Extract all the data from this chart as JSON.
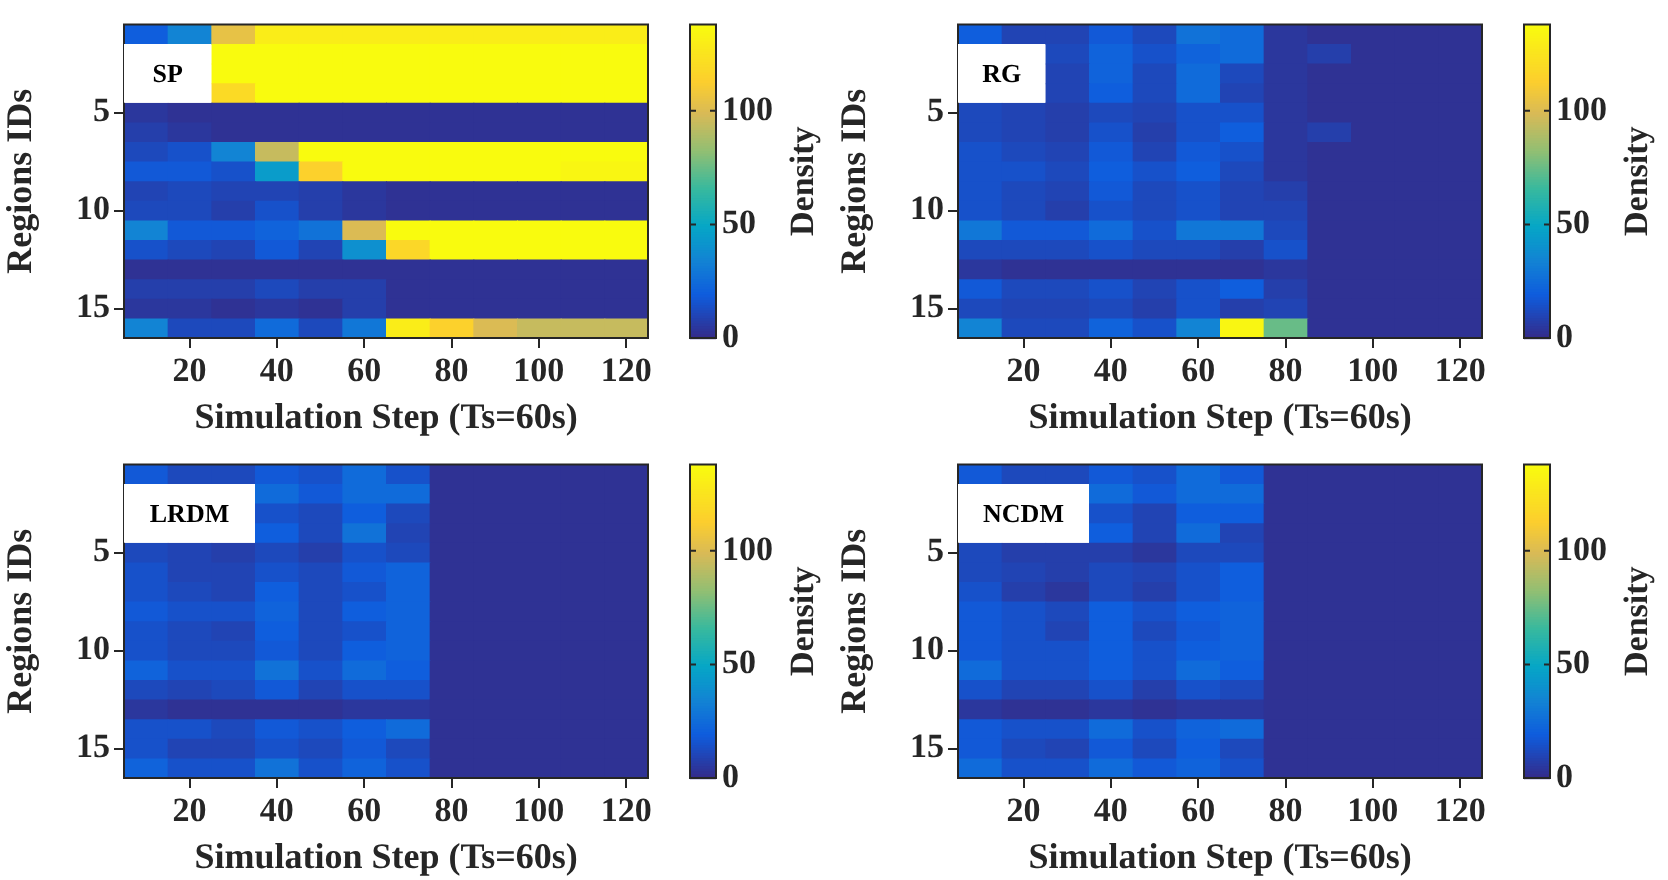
{
  "chart_data": [
    {
      "type": "heatmap",
      "xlabel": "Simulation Step (Ts=60s)",
      "ylabel": "Regions IDs",
      "clabel": "Density",
      "annotations": [
        "SP"
      ],
      "grid": false,
      "categories": [
        null,
        "20",
        null,
        "40",
        null,
        "60",
        null,
        "80",
        null,
        "100",
        null,
        "120"
      ],
      "y_categories": [
        null,
        null,
        null,
        null,
        "5",
        null,
        null,
        null,
        null,
        "10",
        null,
        null,
        null,
        null,
        "15",
        null
      ],
      "clim": [
        0,
        138
      ],
      "cticks": [
        0,
        50,
        100
      ],
      "cells": [
        [
          20,
          35,
          105,
          130,
          130,
          130,
          130,
          130,
          130,
          130,
          130,
          130
        ],
        [
          null,
          null,
          138,
          138,
          138,
          138,
          138,
          138,
          138,
          138,
          138,
          138
        ],
        [
          null,
          null,
          138,
          138,
          138,
          138,
          138,
          138,
          138,
          138,
          138,
          138
        ],
        [
          null,
          null,
          120,
          138,
          138,
          138,
          138,
          138,
          138,
          138,
          138,
          138
        ],
        [
          5,
          3,
          3,
          3,
          3,
          3,
          3,
          3,
          3,
          3,
          3,
          3
        ],
        [
          8,
          5,
          3,
          3,
          3,
          3,
          3,
          3,
          3,
          3,
          3,
          3
        ],
        [
          12,
          15,
          35,
          95,
          138,
          138,
          138,
          138,
          138,
          138,
          138,
          138
        ],
        [
          18,
          18,
          15,
          45,
          115,
          138,
          138,
          138,
          138,
          138,
          135,
          135
        ],
        [
          10,
          12,
          10,
          10,
          8,
          5,
          3,
          3,
          3,
          3,
          3,
          3
        ],
        [
          12,
          12,
          8,
          15,
          8,
          5,
          3,
          3,
          3,
          3,
          3,
          3
        ],
        [
          35,
          18,
          18,
          22,
          28,
          100,
          138,
          138,
          138,
          138,
          138,
          138
        ],
        [
          15,
          12,
          10,
          18,
          10,
          40,
          118,
          138,
          138,
          138,
          138,
          138
        ],
        [
          3,
          3,
          3,
          3,
          3,
          3,
          3,
          3,
          3,
          3,
          3,
          3
        ],
        [
          8,
          8,
          8,
          12,
          8,
          8,
          3,
          3,
          3,
          3,
          3,
          3
        ],
        [
          5,
          5,
          3,
          5,
          3,
          8,
          3,
          3,
          3,
          3,
          3,
          3
        ],
        [
          35,
          12,
          12,
          25,
          12,
          30,
          130,
          115,
          100,
          95,
          95,
          95
        ]
      ]
    },
    {
      "type": "heatmap",
      "xlabel": "Simulation Step (Ts=60s)",
      "ylabel": "Regions IDs",
      "clabel": "Density",
      "annotations": [
        "RG"
      ],
      "grid": false,
      "categories": [
        null,
        "20",
        null,
        "40",
        null,
        "60",
        null,
        "80",
        null,
        "100",
        null,
        "120"
      ],
      "y_categories": [
        null,
        null,
        null,
        null,
        "5",
        null,
        null,
        null,
        null,
        "10",
        null,
        null,
        null,
        null,
        "15",
        null
      ],
      "clim": [
        0,
        138
      ],
      "cticks": [
        0,
        50,
        100
      ],
      "cells": [
        [
          20,
          10,
          10,
          18,
          12,
          28,
          25,
          5,
          3,
          3,
          3,
          3
        ],
        [
          null,
          null,
          12,
          22,
          15,
          22,
          25,
          5,
          8,
          3,
          3,
          3
        ],
        [
          null,
          null,
          10,
          22,
          12,
          25,
          12,
          5,
          3,
          3,
          3,
          3
        ],
        [
          null,
          null,
          10,
          20,
          12,
          25,
          10,
          5,
          3,
          3,
          3,
          3
        ],
        [
          12,
          10,
          8,
          12,
          10,
          15,
          15,
          5,
          3,
          3,
          3,
          3
        ],
        [
          12,
          10,
          8,
          15,
          8,
          15,
          20,
          5,
          8,
          3,
          3,
          3
        ],
        [
          15,
          12,
          10,
          18,
          10,
          18,
          15,
          5,
          3,
          3,
          3,
          3
        ],
        [
          15,
          15,
          12,
          20,
          15,
          20,
          12,
          5,
          3,
          3,
          3,
          3
        ],
        [
          15,
          12,
          10,
          18,
          12,
          15,
          10,
          8,
          3,
          3,
          3,
          3
        ],
        [
          15,
          12,
          8,
          15,
          12,
          15,
          10,
          10,
          3,
          3,
          3,
          3
        ],
        [
          30,
          18,
          18,
          25,
          15,
          30,
          30,
          12,
          3,
          3,
          3,
          3
        ],
        [
          12,
          12,
          12,
          15,
          12,
          12,
          8,
          15,
          3,
          3,
          3,
          3
        ],
        [
          5,
          3,
          3,
          3,
          3,
          3,
          3,
          5,
          3,
          3,
          3,
          3
        ],
        [
          18,
          12,
          12,
          15,
          10,
          15,
          20,
          8,
          3,
          3,
          3,
          3
        ],
        [
          12,
          10,
          10,
          12,
          8,
          15,
          8,
          10,
          3,
          3,
          3,
          3
        ],
        [
          35,
          12,
          12,
          22,
          15,
          35,
          135,
          75,
          3,
          3,
          3,
          3
        ]
      ]
    },
    {
      "type": "heatmap",
      "xlabel": "Simulation Step (Ts=60s)",
      "ylabel": "Regions IDs",
      "clabel": "Density",
      "annotations": [
        "LRDM"
      ],
      "grid": false,
      "categories": [
        null,
        "20",
        null,
        "40",
        null,
        "60",
        null,
        "80",
        null,
        "100",
        null,
        "120"
      ],
      "y_categories": [
        null,
        null,
        null,
        null,
        "5",
        null,
        null,
        null,
        null,
        "10",
        null,
        null,
        null,
        null,
        "15",
        null
      ],
      "clim": [
        0,
        138
      ],
      "cticks": [
        0,
        50,
        100
      ],
      "cells": [
        [
          18,
          12,
          12,
          18,
          15,
          25,
          15,
          3,
          3,
          3,
          3,
          3
        ],
        [
          null,
          null,
          null,
          25,
          18,
          25,
          25,
          3,
          3,
          3,
          3,
          3
        ],
        [
          null,
          null,
          null,
          15,
          12,
          20,
          12,
          3,
          3,
          3,
          3,
          3
        ],
        [
          null,
          null,
          null,
          20,
          12,
          28,
          10,
          3,
          3,
          3,
          3,
          3
        ],
        [
          12,
          10,
          8,
          12,
          8,
          15,
          12,
          3,
          3,
          3,
          3,
          3
        ],
        [
          15,
          10,
          10,
          15,
          12,
          18,
          22,
          3,
          3,
          3,
          3,
          3
        ],
        [
          15,
          12,
          10,
          20,
          12,
          15,
          22,
          3,
          3,
          3,
          3,
          3
        ],
        [
          18,
          15,
          15,
          22,
          12,
          20,
          22,
          3,
          3,
          3,
          3,
          3
        ],
        [
          15,
          12,
          10,
          20,
          12,
          15,
          22,
          3,
          3,
          3,
          3,
          3
        ],
        [
          15,
          12,
          12,
          18,
          12,
          20,
          22,
          3,
          3,
          3,
          3,
          3
        ],
        [
          22,
          15,
          15,
          28,
          15,
          25,
          20,
          3,
          3,
          3,
          3,
          3
        ],
        [
          12,
          10,
          12,
          18,
          10,
          15,
          15,
          3,
          3,
          3,
          3,
          3
        ],
        [
          5,
          3,
          3,
          3,
          3,
          5,
          5,
          3,
          3,
          3,
          3,
          3
        ],
        [
          15,
          15,
          12,
          18,
          15,
          20,
          25,
          3,
          3,
          3,
          3,
          3
        ],
        [
          15,
          10,
          10,
          15,
          12,
          18,
          12,
          3,
          3,
          3,
          3,
          3
        ],
        [
          22,
          15,
          15,
          28,
          15,
          22,
          15,
          3,
          3,
          3,
          3,
          3
        ]
      ]
    },
    {
      "type": "heatmap",
      "xlabel": "Simulation Step (Ts=60s)",
      "ylabel": "Regions IDs",
      "clabel": "Density",
      "annotations": [
        "NCDM"
      ],
      "grid": false,
      "categories": [
        null,
        "20",
        null,
        "40",
        null,
        "60",
        null,
        "80",
        null,
        "100",
        null,
        "120"
      ],
      "y_categories": [
        null,
        null,
        null,
        null,
        "5",
        null,
        null,
        null,
        null,
        "10",
        null,
        null,
        null,
        null,
        "15",
        null
      ],
      "clim": [
        0,
        138
      ],
      "cticks": [
        0,
        50,
        100
      ],
      "cells": [
        [
          18,
          12,
          12,
          18,
          15,
          25,
          18,
          3,
          3,
          3,
          3,
          3
        ],
        [
          null,
          null,
          null,
          25,
          18,
          25,
          25,
          3,
          3,
          3,
          3,
          3
        ],
        [
          null,
          null,
          null,
          15,
          10,
          20,
          20,
          3,
          3,
          3,
          3,
          3
        ],
        [
          null,
          null,
          null,
          20,
          10,
          25,
          10,
          3,
          3,
          3,
          3,
          3
        ],
        [
          12,
          8,
          8,
          8,
          5,
          12,
          12,
          3,
          3,
          3,
          3,
          3
        ],
        [
          12,
          10,
          8,
          12,
          10,
          15,
          20,
          3,
          3,
          3,
          3,
          3
        ],
        [
          15,
          8,
          5,
          12,
          8,
          15,
          20,
          3,
          3,
          3,
          3,
          3
        ],
        [
          18,
          15,
          12,
          20,
          15,
          20,
          22,
          3,
          3,
          3,
          3,
          3
        ],
        [
          18,
          15,
          10,
          20,
          12,
          18,
          22,
          3,
          3,
          3,
          3,
          3
        ],
        [
          18,
          15,
          15,
          20,
          15,
          20,
          22,
          3,
          3,
          3,
          3,
          3
        ],
        [
          25,
          15,
          15,
          20,
          15,
          25,
          20,
          3,
          3,
          3,
          3,
          3
        ],
        [
          15,
          10,
          10,
          15,
          8,
          15,
          12,
          3,
          3,
          3,
          3,
          3
        ],
        [
          5,
          3,
          3,
          5,
          3,
          5,
          5,
          3,
          3,
          3,
          3,
          3
        ],
        [
          18,
          15,
          15,
          25,
          15,
          22,
          25,
          3,
          3,
          3,
          3,
          3
        ],
        [
          18,
          12,
          10,
          18,
          12,
          20,
          12,
          3,
          3,
          3,
          3,
          3
        ],
        [
          25,
          15,
          15,
          25,
          18,
          22,
          15,
          3,
          3,
          3,
          3,
          3
        ]
      ]
    }
  ]
}
